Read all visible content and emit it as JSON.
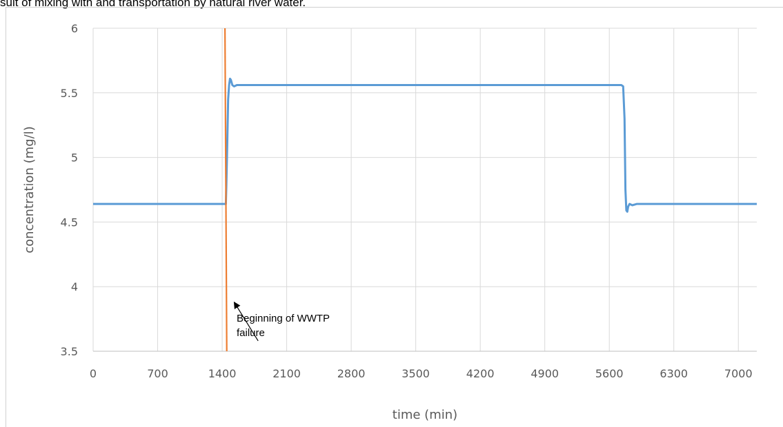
{
  "caption": "sult of mixing with and transportation by natural river water.",
  "chart_data": {
    "type": "line",
    "xlabel": "time (min)",
    "ylabel": "concentration (mg/l)",
    "xlim": [
      0,
      7200
    ],
    "ylim": [
      3.5,
      6
    ],
    "x_ticks": [
      0,
      700,
      1400,
      2100,
      2800,
      3500,
      4200,
      4900,
      5600,
      6300,
      7000
    ],
    "y_ticks": [
      "3.5",
      "4",
      "4.5",
      "5",
      "5.5",
      "6"
    ],
    "grid": true,
    "series": [
      {
        "color": "#5b9bd5",
        "x": [
          0,
          1440,
          1445,
          1455,
          1465,
          1475,
          1485,
          1495,
          1510,
          1530,
          1560,
          1600,
          5730,
          5750,
          5765,
          5775,
          5785,
          5795,
          5805,
          5820,
          5850,
          5900,
          7200
        ],
        "y": [
          4.64,
          4.64,
          4.78,
          5.1,
          5.45,
          5.56,
          5.61,
          5.6,
          5.56,
          5.55,
          5.56,
          5.56,
          5.56,
          5.55,
          5.3,
          4.75,
          4.59,
          4.58,
          4.62,
          4.64,
          4.63,
          4.64,
          4.64
        ]
      },
      {
        "color": "#ed7d31",
        "x": [
          1430,
          1450
        ],
        "y": [
          6.0,
          3.5
        ]
      }
    ],
    "annotations": [
      {
        "text_lines": [
          "Beginning of WWTP",
          "failure"
        ],
        "arrow_tip": [
          1530,
          3.88
        ],
        "arrow_tail": [
          1790,
          3.58
        ]
      }
    ]
  }
}
